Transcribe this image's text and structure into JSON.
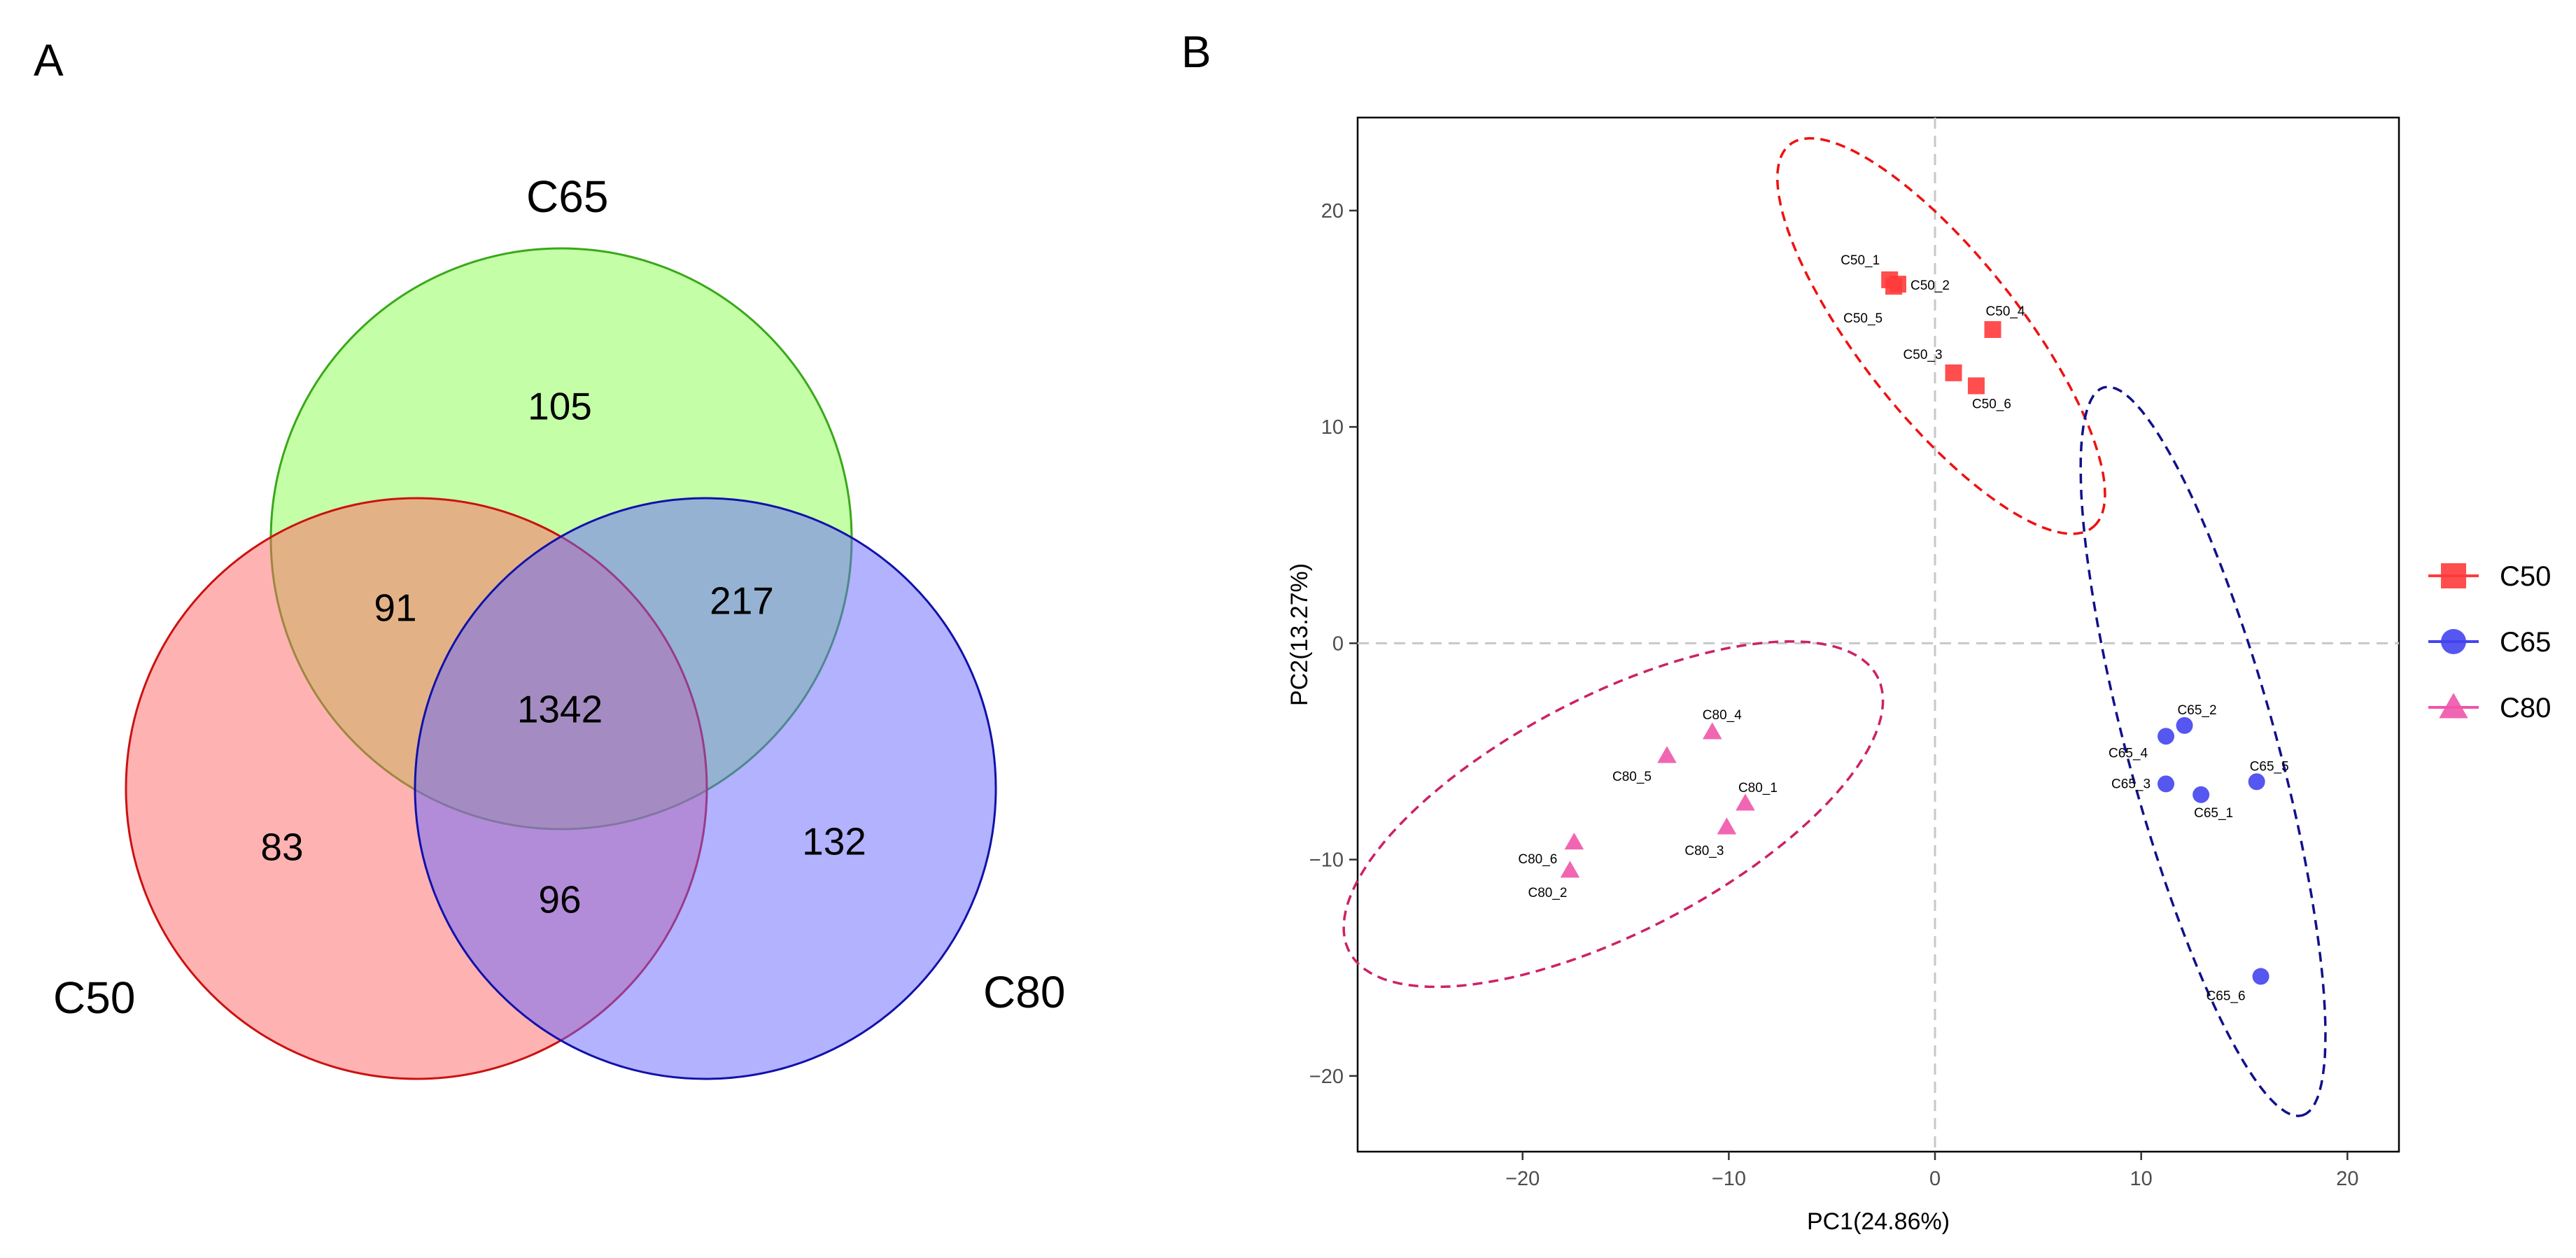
{
  "panels": {
    "a": "A",
    "b": "B"
  },
  "chart_data": [
    {
      "type": "venn",
      "sets": [
        "C50",
        "C65",
        "C80"
      ],
      "regions": {
        "C65_only": "105",
        "C50_C65": "91",
        "C65_C80": "217",
        "C50_C65_C80": "1342",
        "C50_only": "83",
        "C50_C80": "96",
        "C80_only": "132"
      },
      "colors": {
        "C50": "#ff6666",
        "C65": "#7cfc3c",
        "C80": "#6666ff"
      }
    },
    {
      "type": "scatter",
      "xlabel": "PC1(24.86%)",
      "ylabel": "PC2(13.27%)",
      "xlim": [
        -28,
        22.5
      ],
      "ylim": [
        -23.5,
        24.3
      ],
      "xticks": [
        -20,
        -10,
        0,
        10,
        20
      ],
      "yticks": [
        -20,
        -10,
        0,
        10,
        20
      ],
      "xtick_labels": [
        "−20",
        "−10",
        "0",
        "10",
        "20"
      ],
      "ytick_labels": [
        "−20",
        "−10",
        "0",
        "10",
        "20"
      ],
      "reference_lines": {
        "x": 0,
        "y": 0
      },
      "legend_position": "right",
      "series": [
        {
          "name": "C50",
          "marker": "square",
          "color": "#ff3b3b",
          "ellipse_color": "#ee1111",
          "points": [
            {
              "label": "C50_1",
              "x": -2.2,
              "y": 16.8
            },
            {
              "label": "C50_2",
              "x": -1.8,
              "y": 16.6
            },
            {
              "label": "C50_5",
              "x": -2.0,
              "y": 16.5
            },
            {
              "label": "C50_4",
              "x": 2.8,
              "y": 14.5
            },
            {
              "label": "C50_3",
              "x": 0.9,
              "y": 12.5
            },
            {
              "label": "C50_6",
              "x": 2.0,
              "y": 11.9
            }
          ],
          "ellipse": {
            "center": [
              0.3,
              14.2
            ],
            "a": 11.5,
            "b": 3.8,
            "angle_deg": -50
          }
        },
        {
          "name": "C65",
          "marker": "circle",
          "color": "#4444ee",
          "ellipse_color": "#11118a",
          "points": [
            {
              "label": "C65_2",
              "x": 12.1,
              "y": -3.8
            },
            {
              "label": "C65_4",
              "x": 11.2,
              "y": -4.3
            },
            {
              "label": "C65_3",
              "x": 11.2,
              "y": -6.5
            },
            {
              "label": "C65_1",
              "x": 12.9,
              "y": -7.0
            },
            {
              "label": "C65_5",
              "x": 15.6,
              "y": -6.4
            },
            {
              "label": "C65_6",
              "x": 15.8,
              "y": -15.4
            }
          ],
          "ellipse": {
            "center": [
              13.0,
              -5.0
            ],
            "a": 17.5,
            "b": 3.6,
            "angle_deg": -74
          }
        },
        {
          "name": "C80",
          "marker": "triangle",
          "color": "#ee55aa",
          "ellipse_color": "#cc2266",
          "points": [
            {
              "label": "C80_4",
              "x": -10.8,
              "y": -4.1
            },
            {
              "label": "C80_5",
              "x": -13.0,
              "y": -5.2
            },
            {
              "label": "C80_1",
              "x": -9.2,
              "y": -7.4
            },
            {
              "label": "C80_3",
              "x": -10.1,
              "y": -8.5
            },
            {
              "label": "C80_6",
              "x": -17.5,
              "y": -9.2
            },
            {
              "label": "C80_2",
              "x": -17.7,
              "y": -10.5
            }
          ],
          "ellipse": {
            "center": [
              -15.6,
              -7.9
            ],
            "a": 14.3,
            "b": 5.5,
            "angle_deg": 26
          }
        }
      ]
    }
  ]
}
